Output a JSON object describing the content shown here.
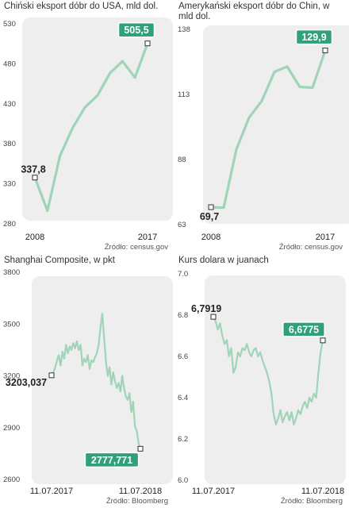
{
  "chart_data": [
    {
      "type": "line",
      "title": "Chiński eksport dóbr do USA, mld dol.",
      "source": "Źródło: census.gov",
      "x": [
        2008,
        2009,
        2010,
        2011,
        2012,
        2013,
        2014,
        2015,
        2016,
        2017
      ],
      "values": [
        337.8,
        296.4,
        365.0,
        399.4,
        425.6,
        440.4,
        468.5,
        483.2,
        462.8,
        505.5
      ],
      "x_tick_labels": [
        "2008",
        "2017"
      ],
      "y_ticks": [
        280,
        330,
        380,
        430,
        480,
        530
      ],
      "ylim": [
        280,
        530
      ],
      "start_label": "337,8",
      "end_label": "505,5",
      "line_color": "#9fd4b8",
      "highlight_color": "#2fa07a",
      "background": "#eeeeee"
    },
    {
      "type": "line",
      "title": "Amerykański eksport dóbr do Chin, w mld dol.",
      "source": "Źródło: census.gov",
      "x": [
        2008,
        2009,
        2010,
        2011,
        2012,
        2013,
        2014,
        2015,
        2016,
        2017
      ],
      "values": [
        69.7,
        69.5,
        91.9,
        104.1,
        110.5,
        121.7,
        123.7,
        115.9,
        115.6,
        129.9
      ],
      "x_tick_labels": [
        "2008",
        "2017"
      ],
      "y_ticks": [
        63,
        88,
        113,
        138
      ],
      "ylim": [
        63,
        138
      ],
      "start_label": "69,7",
      "end_label": "129,9",
      "line_color": "#9fd4b8",
      "highlight_color": "#2fa07a",
      "background": "#eeeeee"
    },
    {
      "type": "line",
      "title": "Shanghai Composite, w pkt",
      "source": "Źródło: Bloomberg",
      "x_range": [
        "11.07.2017",
        "11.07.2018"
      ],
      "values": [
        3203.037,
        3220,
        3250,
        3290,
        3320,
        3260,
        3340,
        3300,
        3380,
        3330,
        3370,
        3350,
        3390,
        3360,
        3400,
        3350,
        3380,
        3260,
        3300,
        3280,
        3320,
        3240,
        3290,
        3280,
        3310,
        3330,
        3380,
        3480,
        3560,
        3420,
        3280,
        3200,
        3250,
        3150,
        3220,
        3170,
        3130,
        3160,
        3110,
        3200,
        3130,
        3080,
        3060,
        3100,
        2990,
        3050,
        2910,
        2880,
        2810,
        2777.771
      ],
      "x_tick_labels": [
        "11.07.2017",
        "11.07.2018"
      ],
      "y_ticks": [
        2600,
        2900,
        3200,
        3500,
        3800
      ],
      "ylim": [
        2600,
        3800
      ],
      "start_label": "3203,037",
      "end_label": "2777,771",
      "line_color": "#9fd4b8",
      "highlight_color": "#2fa07a",
      "background": "#eeeeee"
    },
    {
      "type": "line",
      "title": "Kurs dolara w juanach",
      "source": "Źródło: Bloomberg",
      "x_range": [
        "11.07.2017",
        "11.07.2018"
      ],
      "values": [
        6.7919,
        6.77,
        6.73,
        6.76,
        6.7,
        6.66,
        6.68,
        6.6,
        6.64,
        6.52,
        6.55,
        6.62,
        6.6,
        6.64,
        6.63,
        6.66,
        6.62,
        6.6,
        6.63,
        6.64,
        6.6,
        6.62,
        6.58,
        6.55,
        6.52,
        6.48,
        6.42,
        6.32,
        6.27,
        6.3,
        6.34,
        6.28,
        6.31,
        6.33,
        6.29,
        6.33,
        6.27,
        6.3,
        6.34,
        6.32,
        6.36,
        6.38,
        6.35,
        6.4,
        6.38,
        6.42,
        6.4,
        6.52,
        6.62,
        6.6775
      ],
      "x_tick_labels": [
        "11.07.2017",
        "11.07.2018"
      ],
      "y_ticks": [
        6.0,
        6.2,
        6.4,
        6.6,
        6.8,
        7.0
      ],
      "ylim": [
        6.0,
        7.0
      ],
      "start_label": "6,7919",
      "end_label": "6,6775",
      "line_color": "#9fd4b8",
      "highlight_color": "#2fa07a",
      "background": "#eeeeee"
    }
  ]
}
